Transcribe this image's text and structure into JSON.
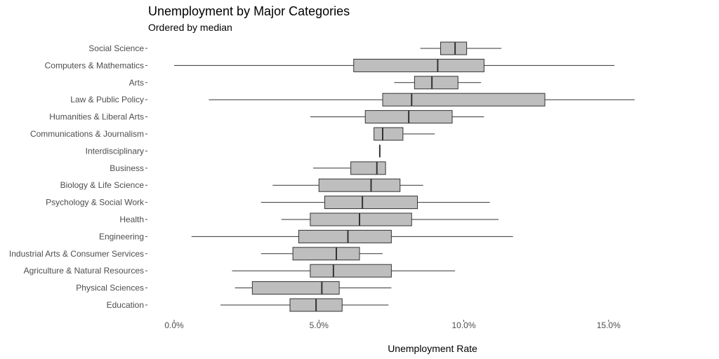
{
  "chart_data": {
    "type": "boxplot",
    "title": "Unemployment by Major Categories",
    "subtitle": "Ordered by median",
    "xlabel": "Unemployment Rate",
    "ylabel": "",
    "xlim": [
      0,
      0.16
    ],
    "x_ticks": [
      {
        "value": 0.0,
        "label": "0.0%"
      },
      {
        "value": 0.05,
        "label": "5.0%"
      },
      {
        "value": 0.1,
        "label": "10.0%"
      },
      {
        "value": 0.15,
        "label": "15.0%"
      }
    ],
    "grid": false,
    "box_fill": "#bebebe",
    "line_color": "#333333",
    "categories": [
      {
        "name": "Social Science",
        "min": 0.085,
        "q1": 0.092,
        "median": 0.097,
        "q3": 0.101,
        "max": 0.113
      },
      {
        "name": "Computers & Mathematics",
        "min": 0.0,
        "q1": 0.062,
        "median": 0.091,
        "q3": 0.107,
        "max": 0.152
      },
      {
        "name": "Arts",
        "min": 0.076,
        "q1": 0.083,
        "median": 0.089,
        "q3": 0.098,
        "max": 0.106
      },
      {
        "name": "Law & Public Policy",
        "min": 0.012,
        "q1": 0.072,
        "median": 0.082,
        "q3": 0.128,
        "max": 0.159
      },
      {
        "name": "Humanities & Liberal Arts",
        "min": 0.047,
        "q1": 0.066,
        "median": 0.081,
        "q3": 0.096,
        "max": 0.107
      },
      {
        "name": "Communications & Journalism",
        "min": 0.069,
        "q1": 0.069,
        "median": 0.072,
        "q3": 0.079,
        "max": 0.09
      },
      {
        "name": "Interdisciplinary",
        "min": 0.071,
        "q1": 0.071,
        "median": 0.071,
        "q3": 0.071,
        "max": 0.071
      },
      {
        "name": "Business",
        "min": 0.048,
        "q1": 0.061,
        "median": 0.07,
        "q3": 0.073,
        "max": 0.073
      },
      {
        "name": "Biology & Life Science",
        "min": 0.034,
        "q1": 0.05,
        "median": 0.068,
        "q3": 0.078,
        "max": 0.086
      },
      {
        "name": "Psychology & Social Work",
        "min": 0.03,
        "q1": 0.052,
        "median": 0.065,
        "q3": 0.084,
        "max": 0.109
      },
      {
        "name": "Health",
        "min": 0.037,
        "q1": 0.047,
        "median": 0.064,
        "q3": 0.082,
        "max": 0.112
      },
      {
        "name": "Engineering",
        "min": 0.006,
        "q1": 0.043,
        "median": 0.06,
        "q3": 0.075,
        "max": 0.117
      },
      {
        "name": "Industrial Arts & Consumer Services",
        "min": 0.03,
        "q1": 0.041,
        "median": 0.056,
        "q3": 0.064,
        "max": 0.072
      },
      {
        "name": "Agriculture & Natural Resources",
        "min": 0.02,
        "q1": 0.047,
        "median": 0.055,
        "q3": 0.075,
        "max": 0.097
      },
      {
        "name": "Physical Sciences",
        "min": 0.021,
        "q1": 0.027,
        "median": 0.051,
        "q3": 0.057,
        "max": 0.075
      },
      {
        "name": "Education",
        "min": 0.016,
        "q1": 0.04,
        "median": 0.049,
        "q3": 0.058,
        "max": 0.074
      }
    ]
  }
}
